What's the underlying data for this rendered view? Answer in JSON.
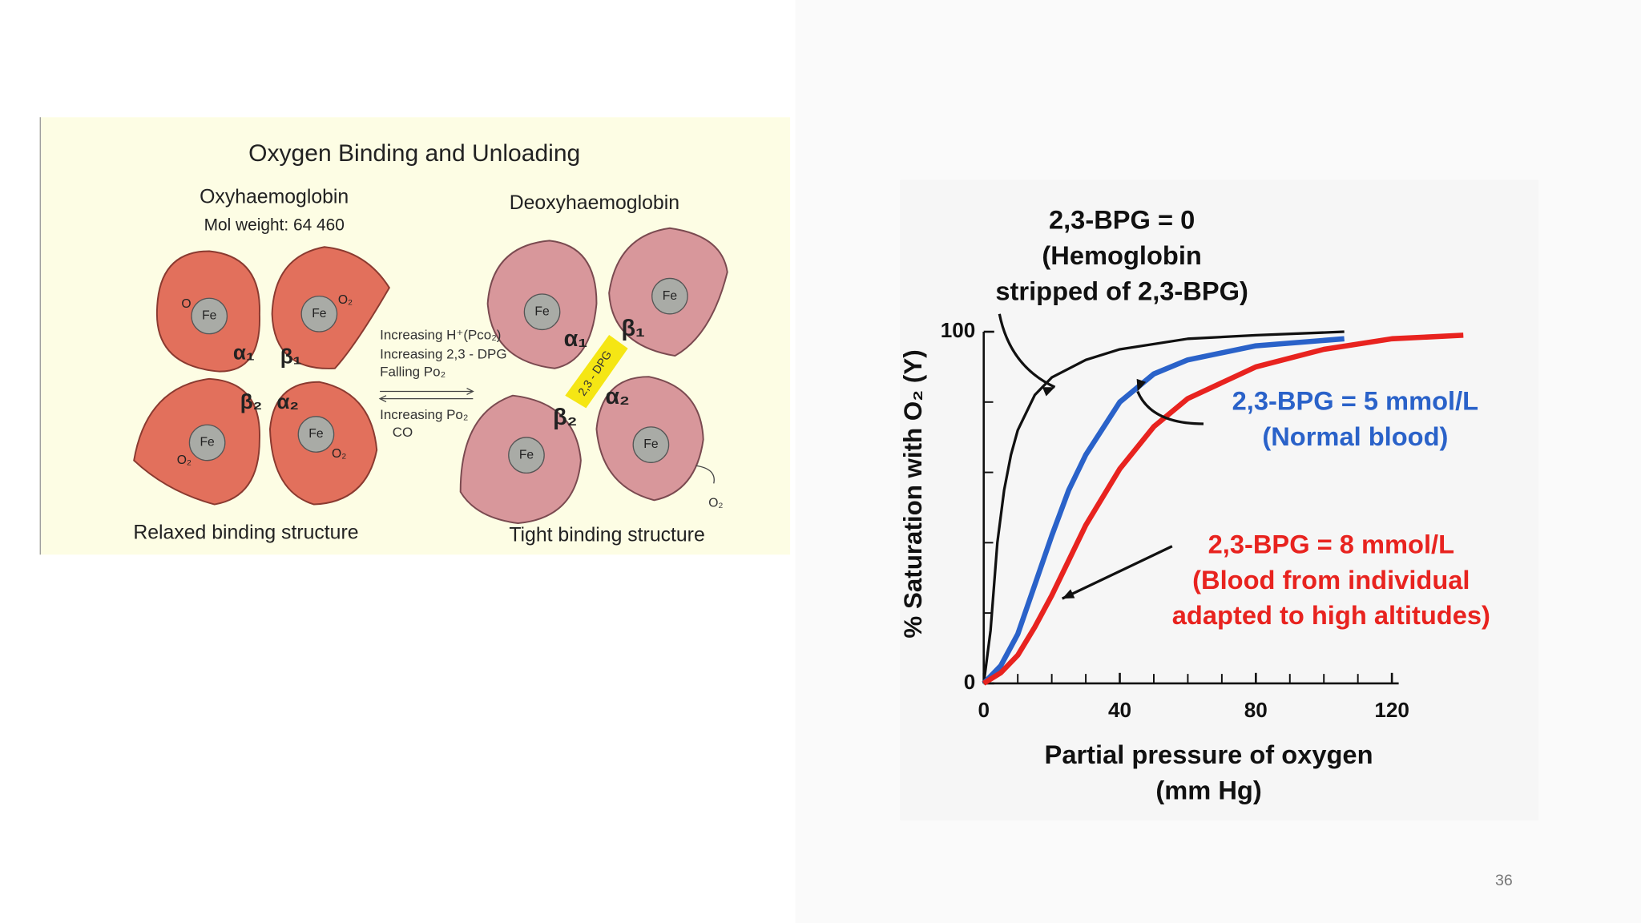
{
  "diagram": {
    "title": "Oxygen Binding and Unloading",
    "iron": "Fe",
    "left": {
      "name": "Oxyhaemoglobin",
      "weight": "Mol weight: 64 460",
      "caption": "Relaxed binding structure",
      "subunits": [
        "α₁",
        "β₁",
        "β₂",
        "α₂"
      ],
      "ligands": [
        "O",
        "O₂",
        "O₂",
        "O₂"
      ]
    },
    "right": {
      "name": "Deoxyhaemoglobin",
      "caption": "Tight binding structure",
      "subunits": [
        "α₁",
        "β₁",
        "β₂",
        "α₂"
      ],
      "bridge": "2,3 - DPG",
      "released": "O₂"
    },
    "forward": [
      "Increasing H⁺(Pco₂)",
      "Increasing 2,3 - DPG",
      "Falling Po₂"
    ],
    "reverse": [
      "Increasing Po₂",
      "CO"
    ]
  },
  "chart_data": {
    "type": "line",
    "ylabel": "% Saturation with O₂ (Y)",
    "xlabel": [
      "Partial pressure of oxygen",
      "(mm Hg)"
    ],
    "xlim": [
      0,
      122
    ],
    "ylim": [
      0,
      100
    ],
    "xticks": [
      0,
      40,
      80,
      120
    ],
    "yticks": [
      0,
      100
    ],
    "xminor_ticks": [
      10,
      20,
      30,
      50,
      60,
      70,
      90,
      100,
      110
    ],
    "yminor_ticks": [
      20,
      40,
      60,
      80
    ],
    "series": [
      {
        "name": "2,3-BPG = 0",
        "label_lines": [
          "(Hemoglobin",
          "stripped of 2,3-BPG)"
        ],
        "color": "#111111",
        "x": [
          0,
          2,
          4,
          6,
          8,
          10,
          15,
          20,
          30,
          40,
          60,
          80,
          106
        ],
        "values": [
          0,
          15,
          40,
          55,
          65,
          72,
          82,
          87,
          92,
          95,
          98,
          99,
          100
        ]
      },
      {
        "name": "2,3-BPG = 5 mmol/L",
        "label_lines": [
          "(Normal blood)"
        ],
        "color": "#2a62c9",
        "x": [
          0,
          5,
          10,
          15,
          20,
          25,
          30,
          40,
          50,
          60,
          80,
          106
        ],
        "values": [
          0,
          5,
          14,
          28,
          42,
          55,
          65,
          80,
          88,
          92,
          96,
          98
        ]
      },
      {
        "name": "2,3-BPG = 8 mmol/L",
        "label_lines": [
          "(Blood from individual",
          "adapted to high altitudes)"
        ],
        "color": "#e8231f",
        "x": [
          0,
          5,
          10,
          15,
          20,
          25,
          30,
          40,
          50,
          60,
          80,
          100,
          120,
          141
        ],
        "values": [
          0,
          3,
          8,
          16,
          25,
          35,
          45,
          61,
          73,
          81,
          90,
          95,
          98,
          99
        ]
      }
    ]
  },
  "slide_number": "36"
}
